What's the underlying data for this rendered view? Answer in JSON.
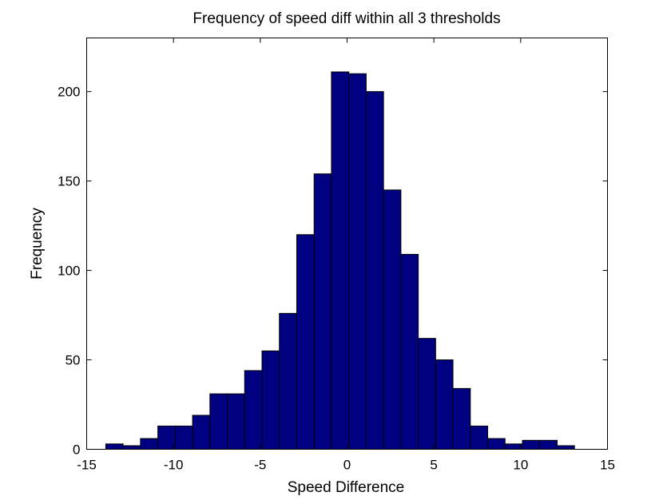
{
  "chart_data": {
    "type": "bar",
    "title": "Frequency of speed diff within all 3 thresholds",
    "xlabel": "Speed Difference",
    "ylabel": "Frequency",
    "xlim": [
      -15,
      15
    ],
    "ylim": [
      0,
      230
    ],
    "xticks": [
      -15,
      -10,
      -5,
      0,
      5,
      10,
      15
    ],
    "yticks": [
      0,
      50,
      100,
      150,
      200
    ],
    "grid": false,
    "bar_color": "#000080",
    "bar_edge_color": "#000000",
    "bins": [
      {
        "x0": -13.9,
        "x1": -12.9,
        "value": 3
      },
      {
        "x0": -12.9,
        "x1": -11.9,
        "value": 2
      },
      {
        "x0": -11.9,
        "x1": -10.9,
        "value": 6
      },
      {
        "x0": -10.9,
        "x1": -9.9,
        "value": 13
      },
      {
        "x0": -9.9,
        "x1": -8.9,
        "value": 13
      },
      {
        "x0": -8.9,
        "x1": -7.9,
        "value": 19
      },
      {
        "x0": -7.9,
        "x1": -6.9,
        "value": 31
      },
      {
        "x0": -6.9,
        "x1": -5.9,
        "value": 31
      },
      {
        "x0": -5.9,
        "x1": -4.9,
        "value": 44
      },
      {
        "x0": -4.9,
        "x1": -3.9,
        "value": 55
      },
      {
        "x0": -3.9,
        "x1": -2.9,
        "value": 76
      },
      {
        "x0": -2.9,
        "x1": -1.9,
        "value": 120
      },
      {
        "x0": -1.9,
        "x1": -0.9,
        "value": 154
      },
      {
        "x0": -0.9,
        "x1": 0.1,
        "value": 211
      },
      {
        "x0": 0.1,
        "x1": 1.1,
        "value": 210
      },
      {
        "x0": 1.1,
        "x1": 2.1,
        "value": 200
      },
      {
        "x0": 2.1,
        "x1": 3.1,
        "value": 145
      },
      {
        "x0": 3.1,
        "x1": 4.1,
        "value": 109
      },
      {
        "x0": 4.1,
        "x1": 5.1,
        "value": 62
      },
      {
        "x0": 5.1,
        "x1": 6.1,
        "value": 50
      },
      {
        "x0": 6.1,
        "x1": 7.1,
        "value": 34
      },
      {
        "x0": 7.1,
        "x1": 8.1,
        "value": 13
      },
      {
        "x0": 8.1,
        "x1": 9.1,
        "value": 6
      },
      {
        "x0": 9.1,
        "x1": 10.1,
        "value": 3
      },
      {
        "x0": 10.1,
        "x1": 11.1,
        "value": 5
      },
      {
        "x0": 11.1,
        "x1": 12.1,
        "value": 5
      },
      {
        "x0": 12.1,
        "x1": 13.1,
        "value": 2
      }
    ]
  }
}
